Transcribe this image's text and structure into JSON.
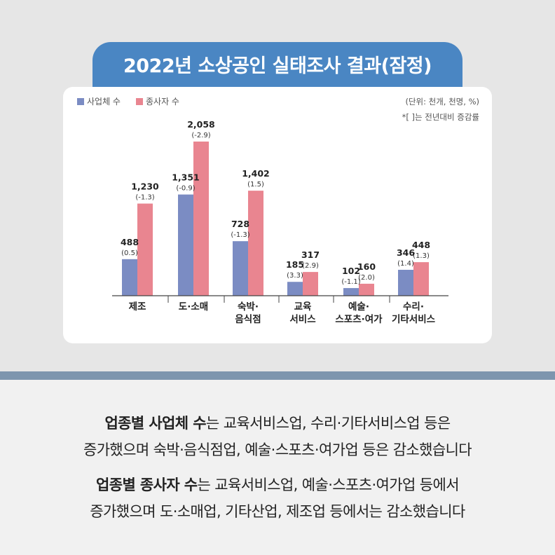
{
  "title": "2022년 소상공인 실태조사 결과(잠정)",
  "unit_note": "(단위: 천개, 천명, %)",
  "footnote": "*[ ]는 전년대비 증감률",
  "colors": {
    "business": "#7b8cc3",
    "worker": "#e98590",
    "title_bg": "#4a86c3",
    "divider": "#7d95ae"
  },
  "chart_data": {
    "type": "bar",
    "categories": [
      [
        "제조"
      ],
      [
        "도·소매"
      ],
      [
        "숙박·",
        "음식점"
      ],
      [
        "교육",
        "서비스"
      ],
      [
        "예술·",
        "스포츠·여가"
      ],
      [
        "수리·",
        "기타서비스"
      ]
    ],
    "series": [
      {
        "name": "사업체 수",
        "values": [
          488,
          1351,
          728,
          185,
          102,
          346
        ],
        "changes": [
          "(0.5)",
          "(-0.9)",
          "(-1.3)",
          "(3.3)",
          "(-1.1)",
          "(1.4)"
        ],
        "labels": [
          "488",
          "1,351",
          "728",
          "185",
          "102",
          "346"
        ]
      },
      {
        "name": "종사자 수",
        "values": [
          1230,
          2058,
          1402,
          317,
          160,
          448
        ],
        "changes": [
          "(-1.3)",
          "(-2.9)",
          "(1.5)",
          "(2.9)",
          "(2.0)",
          "(1.3)"
        ],
        "labels": [
          "1,230",
          "2,058",
          "1,402",
          "317",
          "160",
          "448"
        ]
      }
    ],
    "ylim": [
      0,
      2058
    ],
    "grid": false,
    "legend": "top-left"
  },
  "summary": {
    "line1_bold": "업종별 사업체 수",
    "line1_rest": "는 교육서비스업, 수리·기타서비스업 등은",
    "line2": "증가했으며 숙박·음식점업, 예술·스포츠·여가업 등은 감소했습니다",
    "line3_bold": "업종별 종사자 수",
    "line3_rest": "는 교육서비스업, 예술·스포츠·여가업 등에서",
    "line4": "증가했으며 도·소매업, 기타산업, 제조업 등에서는 감소했습니다"
  }
}
